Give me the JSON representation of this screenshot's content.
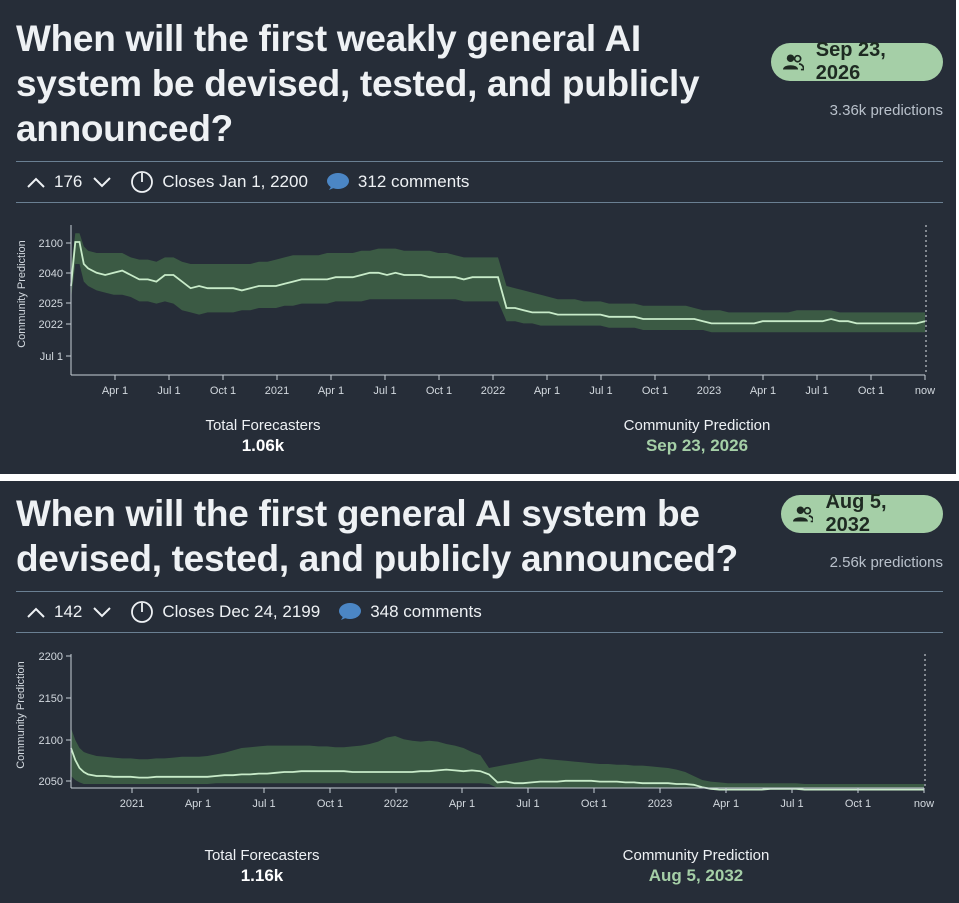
{
  "colors": {
    "background": "#262d38",
    "accent_green": "#a5cfa7",
    "band": "#3b5a44",
    "line": "#c8ebc9",
    "divider": "#6a7f92"
  },
  "questions": [
    {
      "title": "When will the first weakly general AI system be devised, tested, and publicly announced?",
      "prediction_pill": "Sep 23, 2026",
      "predictions_count": "3.36k predictions",
      "votes": "176",
      "closes": "Closes Jan 1, 2200",
      "comments": "312 comments",
      "stats": {
        "forecasters_label": "Total Forecasters",
        "forecasters_value": "1.06k",
        "prediction_label": "Community Prediction",
        "prediction_value": "Sep 23, 2026"
      },
      "chart_data": {
        "type": "area",
        "ylabel": "Community Prediction",
        "y_ticks": [
          "2100",
          "2040",
          "2025",
          "2022",
          "Jul 1"
        ],
        "x_ticks": [
          "Apr 1",
          "Jul 1",
          "Oct 1",
          "2021",
          "Apr 1",
          "Jul 1",
          "Oct 1",
          "2022",
          "Apr 1",
          "Jul 1",
          "Oct 1",
          "2023",
          "Apr 1",
          "Jul 1",
          "Oct 1",
          "now"
        ],
        "x": [
          0,
          0.5,
          1,
          1.5,
          2,
          3,
          4,
          5,
          6,
          7,
          8,
          9,
          10,
          11,
          12,
          13,
          14,
          15,
          16,
          17,
          18,
          19,
          20,
          21,
          22,
          23,
          24,
          25,
          26,
          27,
          28,
          29,
          30,
          31,
          32,
          33,
          34,
          35,
          36,
          37,
          38,
          39,
          40,
          41,
          42,
          43,
          44,
          45,
          46,
          47,
          48,
          49,
          50,
          51,
          52,
          53,
          54,
          55,
          56,
          57,
          58,
          59,
          60,
          61,
          62,
          63,
          64,
          65,
          66,
          67,
          68,
          69,
          70,
          71,
          72,
          73,
          74,
          75,
          76,
          77,
          78,
          79,
          80,
          81,
          82,
          83,
          84,
          85,
          86,
          87,
          88,
          89,
          90,
          91,
          92,
          93,
          94,
          95,
          96,
          97,
          98,
          99,
          100
        ],
        "series": [
          {
            "name": "median",
            "values": [
              20,
              40,
              40,
              30,
              28,
              26,
              25,
              26,
              27,
              25,
              23,
              23,
              22,
              25,
              25,
              22,
              19,
              20,
              19,
              19,
              19,
              19,
              18,
              19,
              20,
              20,
              20,
              21,
              22,
              23,
              23,
              23,
              23,
              24,
              24,
              24,
              25,
              26,
              26,
              25,
              26,
              25,
              25,
              25,
              24,
              24,
              24,
              24,
              23,
              24,
              24,
              24,
              24,
              10,
              10,
              9,
              8,
              8,
              8,
              7,
              7,
              7,
              7,
              7,
              7,
              6,
              6,
              6,
              6,
              5,
              5,
              5,
              5,
              5,
              5,
              5,
              4,
              3,
              3,
              3,
              3,
              3,
              3,
              4,
              4,
              4,
              4,
              4,
              4,
              4,
              4,
              5,
              4,
              4,
              3,
              3,
              3,
              3,
              3,
              3,
              3,
              3,
              4
            ]
          },
          {
            "name": "lower",
            "values": [
              14,
              30,
              30,
              22,
              20,
              18,
              17,
              16,
              16,
              15,
              13,
              13,
              12,
              13,
              12,
              9,
              8,
              7,
              8,
              8,
              8,
              8,
              9,
              9,
              10,
              10,
              10,
              11,
              11,
              12,
              12,
              12,
              12,
              13,
              13,
              13,
              13,
              14,
              14,
              14,
              14,
              14,
              14,
              14,
              14,
              14,
              14,
              14,
              13,
              13,
              13,
              13,
              13,
              4,
              4,
              3,
              3,
              2,
              2,
              2,
              2,
              2,
              2,
              2,
              2,
              1,
              1,
              1,
              1,
              0,
              0,
              0,
              0,
              0,
              0,
              0,
              0,
              -1,
              -1,
              -1,
              -1,
              -1,
              -1,
              -1,
              -1,
              -1,
              -1,
              -1,
              -1,
              -1,
              -1,
              -1,
              -1,
              -1,
              -1,
              -1,
              -1,
              -1,
              -1,
              -1,
              -1,
              -1,
              -1
            ]
          },
          {
            "name": "upper",
            "values": [
              28,
              44,
              44,
              38,
              36,
              35,
              35,
              35,
              35,
              33,
              32,
              32,
              31,
              33,
              33,
              31,
              30,
              30,
              30,
              30,
              30,
              30,
              30,
              30,
              31,
              31,
              32,
              33,
              34,
              34,
              34,
              34,
              35,
              35,
              35,
              35,
              36,
              36,
              37,
              37,
              37,
              36,
              36,
              36,
              36,
              35,
              35,
              34,
              33,
              33,
              33,
              33,
              33,
              20,
              19,
              18,
              17,
              16,
              15,
              14,
              14,
              14,
              13,
              13,
              13,
              12,
              12,
              12,
              12,
              11,
              11,
              11,
              11,
              11,
              11,
              10,
              9,
              9,
              9,
              8,
              8,
              8,
              8,
              8,
              8,
              8,
              8,
              9,
              9,
              9,
              9,
              9,
              8,
              8,
              8,
              8,
              8,
              8,
              8,
              8,
              8,
              8,
              8
            ]
          }
        ]
      }
    },
    {
      "title": "When will the first general AI system be devised, tested, and publicly announced?",
      "prediction_pill": "Aug 5, 2032",
      "predictions_count": "2.56k predictions",
      "votes": "142",
      "closes": "Closes Dec 24, 2199",
      "comments": "348 comments",
      "stats": {
        "forecasters_label": "Total Forecasters",
        "forecasters_value": "1.16k",
        "prediction_label": "Community Prediction",
        "prediction_value": "Aug 5, 2032"
      },
      "chart_data": {
        "type": "area",
        "ylabel": "Community Prediction",
        "y_ticks": [
          "2200",
          "2150",
          "2100",
          "2050"
        ],
        "ylim": [
          2035,
          2200
        ],
        "x_ticks": [
          "2021",
          "Apr 1",
          "Jul 1",
          "Oct 1",
          "2022",
          "Apr 1",
          "Jul 1",
          "Oct 1",
          "2023",
          "Apr 1",
          "Jul 1",
          "Oct 1",
          "now"
        ],
        "x": [
          0,
          0.5,
          1,
          1.5,
          2,
          3,
          4,
          5,
          6,
          7,
          8,
          9,
          10,
          11,
          12,
          13,
          14,
          15,
          16,
          17,
          18,
          19,
          20,
          21,
          22,
          23,
          24,
          25,
          26,
          27,
          28,
          29,
          30,
          31,
          32,
          33,
          34,
          35,
          36,
          37,
          38,
          39,
          40,
          41,
          42,
          43,
          44,
          45,
          46,
          47,
          48,
          49,
          50,
          51,
          52,
          53,
          54,
          55,
          56,
          57,
          58,
          59,
          60,
          61,
          62,
          63,
          64,
          65,
          66,
          67,
          68,
          69,
          70,
          71,
          72,
          73,
          74,
          75,
          76,
          77,
          78,
          79,
          80,
          81,
          82,
          83,
          84,
          85,
          86,
          87,
          88,
          89,
          90,
          91,
          92,
          93,
          94,
          95,
          96,
          97,
          98,
          99,
          100
        ],
        "series": [
          {
            "name": "median",
            "values": [
              2085,
              2070,
              2060,
              2055,
              2052,
              2050,
              2050,
              2049,
              2049,
              2049,
              2048,
              2048,
              2049,
              2049,
              2049,
              2049,
              2049,
              2049,
              2049,
              2050,
              2051,
              2051,
              2052,
              2052,
              2053,
              2053,
              2054,
              2055,
              2055,
              2056,
              2056,
              2056,
              2056,
              2056,
              2056,
              2055,
              2055,
              2055,
              2055,
              2055,
              2055,
              2055,
              2055,
              2056,
              2056,
              2057,
              2058,
              2057,
              2056,
              2057,
              2056,
              2052,
              2042,
              2043,
              2041,
              2041,
              2042,
              2043,
              2043,
              2043,
              2044,
              2044,
              2044,
              2044,
              2043,
              2043,
              2043,
              2042,
              2042,
              2041,
              2041,
              2041,
              2041,
              2040,
              2040,
              2039,
              2036,
              2034,
              2033,
              2033,
              2033,
              2033,
              2033,
              2033,
              2034,
              2034,
              2034,
              2034,
              2033,
              2033,
              2033,
              2033,
              2033,
              2033,
              2033,
              2033,
              2033,
              2033,
              2033,
              2033,
              2033,
              2033,
              2033
            ]
          },
          {
            "name": "lower",
            "values": [
              2050,
              2045,
              2042,
              2040,
              2040,
              2040,
              2040,
              2040,
              2040,
              2040,
              2040,
              2040,
              2040,
              2040,
              2040,
              2040,
              2040,
              2040,
              2040,
              2041,
              2041,
              2041,
              2041,
              2041,
              2041,
              2041,
              2041,
              2041,
              2041,
              2041,
              2041,
              2041,
              2041,
              2041,
              2041,
              2041,
              2041,
              2041,
              2041,
              2041,
              2041,
              2041,
              2041,
              2041,
              2041,
              2041,
              2041,
              2041,
              2041,
              2041,
              2041,
              2040,
              2035,
              2035,
              2035,
              2035,
              2035,
              2035,
              2035,
              2035,
              2035,
              2035,
              2035,
              2035,
              2035,
              2035,
              2035,
              2035,
              2035,
              2035,
              2035,
              2035,
              2035,
              2035,
              2035,
              2035,
              2035,
              2035,
              2035,
              2035,
              2035,
              2035,
              2035,
              2035,
              2035,
              2035,
              2035,
              2035,
              2035,
              2035,
              2035,
              2035,
              2035,
              2035,
              2035,
              2035,
              2035,
              2035,
              2035,
              2035,
              2035,
              2035,
              2035
            ]
          },
          {
            "name": "upper",
            "values": [
              2110,
              2095,
              2085,
              2080,
              2078,
              2075,
              2074,
              2073,
              2072,
              2072,
              2071,
              2071,
              2072,
              2072,
              2073,
              2074,
              2074,
              2074,
              2075,
              2077,
              2079,
              2082,
              2085,
              2086,
              2087,
              2088,
              2088,
              2088,
              2088,
              2088,
              2088,
              2087,
              2087,
              2086,
              2086,
              2087,
              2088,
              2090,
              2093,
              2098,
              2100,
              2096,
              2094,
              2093,
              2094,
              2093,
              2090,
              2088,
              2085,
              2080,
              2076,
              2060,
              2062,
              2064,
              2066,
              2068,
              2070,
              2072,
              2071,
              2070,
              2069,
              2068,
              2067,
              2066,
              2065,
              2065,
              2064,
              2064,
              2063,
              2063,
              2062,
              2061,
              2060,
              2058,
              2055,
              2050,
              2045,
              2043,
              2042,
              2041,
              2041,
              2041,
              2041,
              2041,
              2041,
              2041,
              2041,
              2041,
              2040,
              2040,
              2040,
              2040,
              2040,
              2040,
              2040,
              2040,
              2040,
              2040,
              2040,
              2040,
              2040,
              2040,
              2040
            ]
          }
        ]
      }
    }
  ]
}
